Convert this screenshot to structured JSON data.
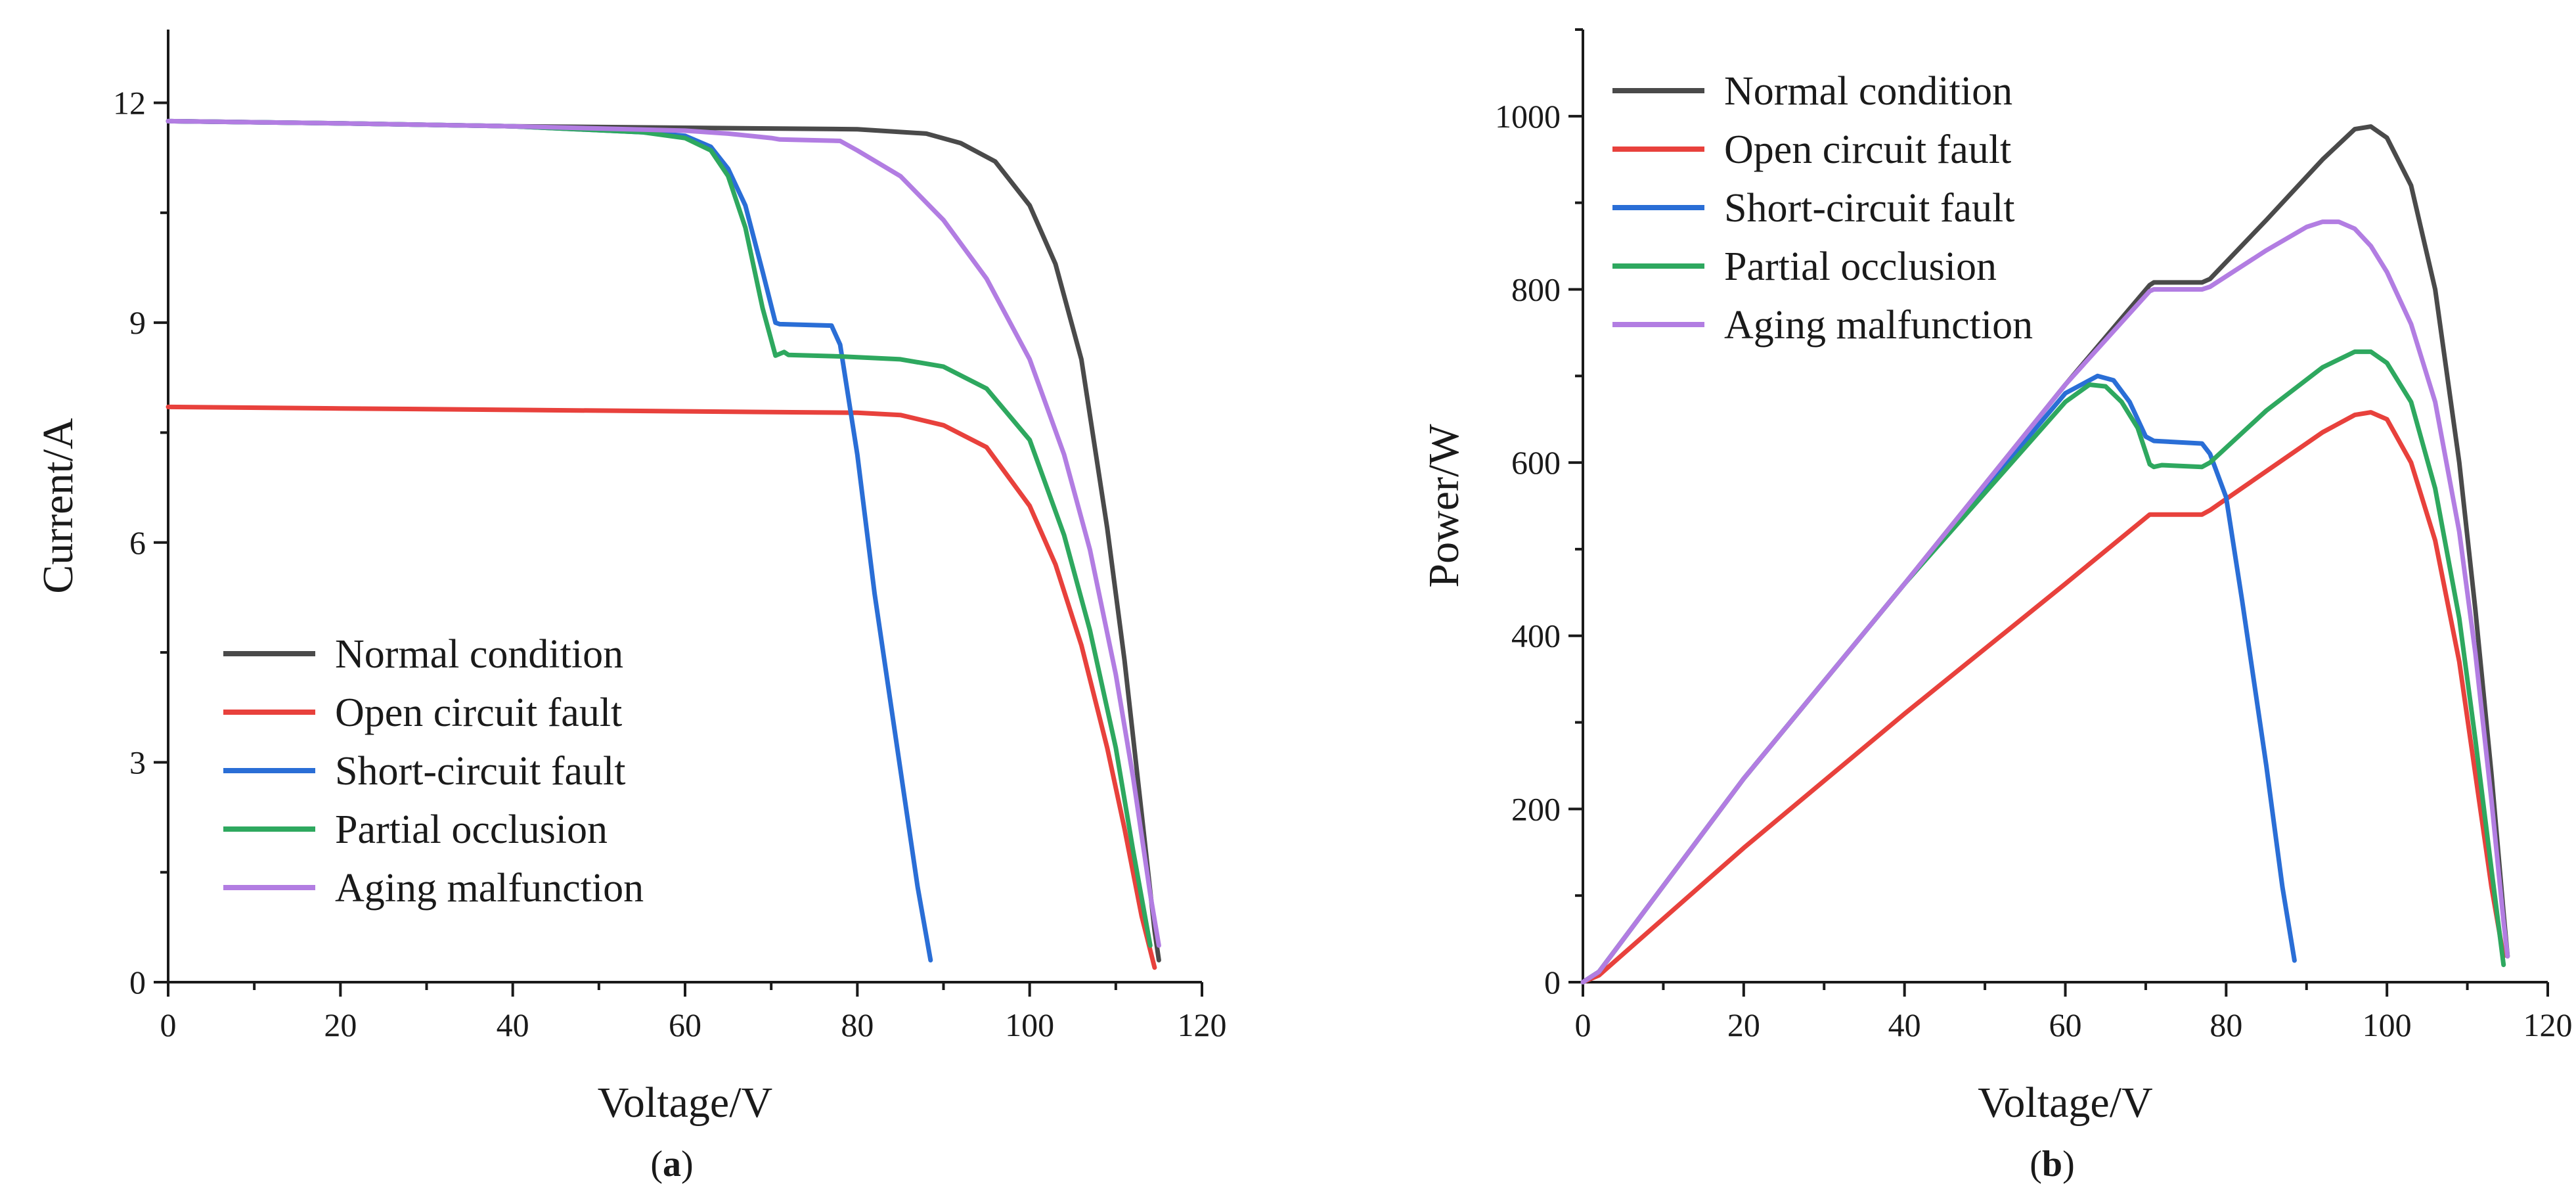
{
  "colors": {
    "normal": "#4a4a4a",
    "open": "#e8413c",
    "short": "#2a6ed6",
    "partial": "#2ea85f",
    "aging": "#b27de2"
  },
  "chart_data": [
    {
      "type": "line",
      "caption_label": "a",
      "title": "",
      "xlabel": "Voltage/V",
      "ylabel": "Current/A",
      "xlim": [
        0,
        120
      ],
      "ylim": [
        0,
        13
      ],
      "xticks": [
        0,
        20,
        40,
        60,
        80,
        100,
        120
      ],
      "yticks": [
        0,
        3,
        6,
        9,
        12
      ],
      "legend_position": "bottom-left",
      "series": [
        {
          "name": "Normal condition",
          "color_key": "normal",
          "x": [
            0,
            20,
            40,
            60,
            70,
            80,
            88,
            92,
            96,
            100,
            103,
            106,
            109,
            111,
            113,
            114.5,
            115
          ],
          "y": [
            11.75,
            11.72,
            11.68,
            11.66,
            11.65,
            11.64,
            11.58,
            11.45,
            11.2,
            10.6,
            9.8,
            8.5,
            6.2,
            4.4,
            2.3,
            0.7,
            0.3
          ]
        },
        {
          "name": "Open circuit fault",
          "color_key": "open",
          "x": [
            0,
            20,
            40,
            60,
            80,
            85,
            90,
            95,
            100,
            103,
            106,
            109,
            111,
            113,
            114.5
          ],
          "y": [
            7.85,
            7.83,
            7.81,
            7.79,
            7.77,
            7.74,
            7.6,
            7.3,
            6.5,
            5.7,
            4.6,
            3.2,
            2.1,
            0.9,
            0.2
          ]
        },
        {
          "name": "Short-circuit fault",
          "color_key": "short",
          "x": [
            0,
            20,
            40,
            55,
            60,
            63,
            65,
            67,
            69,
            70.5,
            71,
            77,
            78,
            80,
            82,
            85,
            87,
            88.5
          ],
          "y": [
            11.75,
            11.72,
            11.68,
            11.6,
            11.55,
            11.4,
            11.1,
            10.6,
            9.7,
            9.0,
            8.98,
            8.96,
            8.7,
            7.2,
            5.3,
            2.9,
            1.3,
            0.3
          ]
        },
        {
          "name": "Partial occlusion",
          "color_key": "partial",
          "x": [
            0,
            20,
            40,
            55,
            60,
            63,
            65,
            67,
            69,
            70.5,
            71.5,
            72,
            78,
            85,
            90,
            95,
            100,
            104,
            107,
            110,
            112,
            114
          ],
          "y": [
            11.75,
            11.72,
            11.68,
            11.6,
            11.52,
            11.35,
            11.0,
            10.3,
            9.2,
            8.55,
            8.6,
            8.56,
            8.54,
            8.5,
            8.4,
            8.1,
            7.4,
            6.1,
            4.8,
            3.2,
            1.8,
            0.5
          ]
        },
        {
          "name": "Aging malfunction",
          "color_key": "aging",
          "x": [
            0,
            20,
            40,
            60,
            65,
            70,
            71,
            78,
            80,
            85,
            90,
            95,
            100,
            104,
            107,
            110,
            112,
            114,
            115
          ],
          "y": [
            11.75,
            11.72,
            11.68,
            11.62,
            11.58,
            11.52,
            11.5,
            11.48,
            11.35,
            11.0,
            10.4,
            9.6,
            8.5,
            7.2,
            5.9,
            4.2,
            2.8,
            1.2,
            0.5
          ]
        }
      ]
    },
    {
      "type": "line",
      "caption_label": "b",
      "title": "",
      "xlabel": "Voltage/V",
      "ylabel": "Power/W",
      "xlim": [
        0,
        120
      ],
      "ylim": [
        0,
        1100
      ],
      "xticks": [
        0,
        20,
        40,
        60,
        80,
        100,
        120
      ],
      "yticks": [
        0,
        200,
        400,
        600,
        800,
        1000
      ],
      "legend_position": "top-left",
      "series": [
        {
          "name": "Normal condition",
          "color_key": "normal",
          "x": [
            0,
            2,
            20,
            40,
            60,
            70.5,
            71,
            77,
            78,
            85,
            92,
            96,
            98,
            100,
            103,
            106,
            109,
            111,
            113,
            114.5,
            115
          ],
          "y": [
            0,
            12,
            235,
            460,
            690,
            805,
            808,
            808,
            812,
            880,
            950,
            985,
            988,
            975,
            920,
            800,
            600,
            430,
            240,
            80,
            30
          ]
        },
        {
          "name": "Open circuit fault",
          "color_key": "open",
          "x": [
            0,
            2,
            20,
            40,
            60,
            70.5,
            71,
            77,
            78,
            85,
            92,
            96,
            98,
            100,
            103,
            106,
            109,
            111,
            113,
            114.5
          ],
          "y": [
            0,
            8,
            155,
            310,
            460,
            540,
            540,
            540,
            545,
            590,
            635,
            655,
            658,
            650,
            600,
            510,
            370,
            240,
            110,
            30
          ]
        },
        {
          "name": "Short-circuit fault",
          "color_key": "short",
          "x": [
            0,
            2,
            20,
            40,
            60,
            64,
            66,
            68,
            70,
            71,
            77,
            78,
            80,
            82,
            85,
            87,
            88.5
          ],
          "y": [
            0,
            12,
            235,
            460,
            680,
            700,
            695,
            670,
            630,
            625,
            622,
            610,
            560,
            440,
            250,
            110,
            25
          ]
        },
        {
          "name": "Partial occlusion",
          "color_key": "partial",
          "x": [
            0,
            2,
            20,
            40,
            60,
            63,
            65,
            67,
            69,
            70.5,
            71,
            72,
            77,
            78,
            85,
            92,
            96,
            98,
            100,
            103,
            106,
            109,
            111,
            113,
            114.5
          ],
          "y": [
            0,
            12,
            235,
            460,
            670,
            690,
            688,
            670,
            640,
            598,
            595,
            597,
            595,
            600,
            660,
            710,
            728,
            728,
            715,
            670,
            570,
            420,
            280,
            130,
            20
          ]
        },
        {
          "name": "Aging malfunction",
          "color_key": "aging",
          "x": [
            0,
            2,
            20,
            40,
            60,
            70.5,
            71,
            77,
            78,
            85,
            90,
            92,
            94,
            96,
            98,
            100,
            103,
            106,
            109,
            111,
            113,
            114.5,
            115
          ],
          "y": [
            0,
            12,
            235,
            460,
            690,
            798,
            800,
            800,
            803,
            845,
            872,
            878,
            878,
            870,
            850,
            820,
            760,
            670,
            520,
            380,
            210,
            70,
            30
          ]
        }
      ]
    }
  ]
}
